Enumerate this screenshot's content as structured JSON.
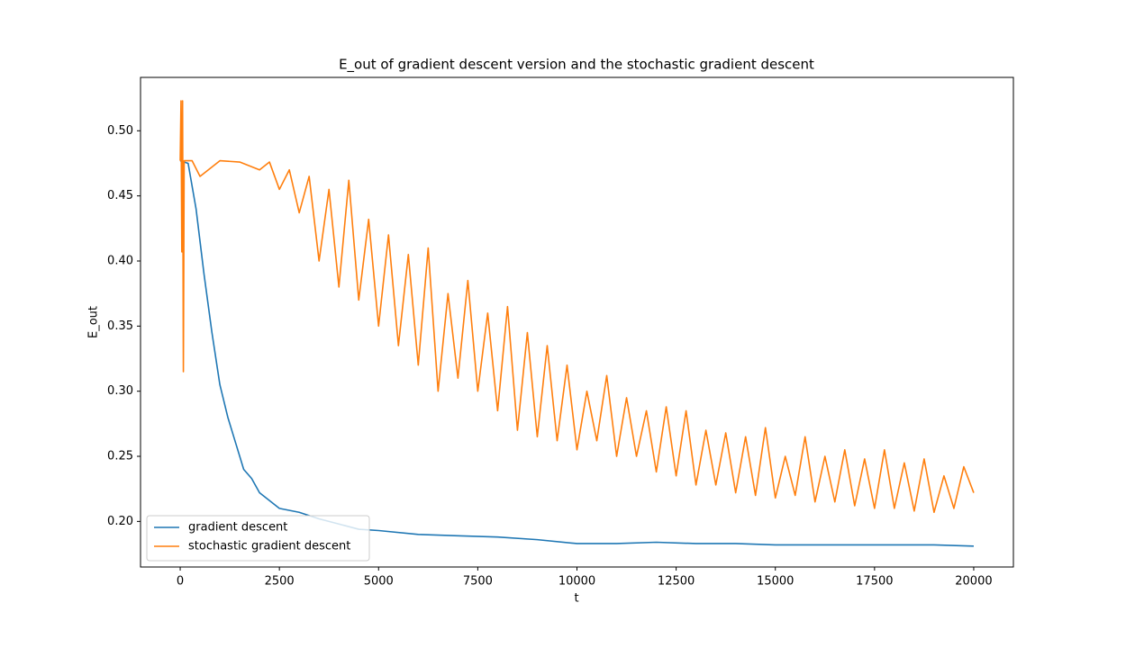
{
  "chart_data": {
    "type": "line",
    "title": "E_out of gradient descent version and the stochastic gradient descent",
    "x_label": "t",
    "y_label": "E_out",
    "xlim": [
      -1000,
      21000
    ],
    "ylim": [
      0.165,
      0.541
    ],
    "xticks": [
      0,
      2500,
      5000,
      7500,
      10000,
      12500,
      15000,
      17500,
      20000
    ],
    "yticks": [
      {
        "value": 0.2,
        "label": "0.20"
      },
      {
        "value": 0.25,
        "label": "0.25"
      },
      {
        "value": 0.3,
        "label": "0.30"
      },
      {
        "value": 0.35,
        "label": "0.35"
      },
      {
        "value": 0.4,
        "label": "0.40"
      },
      {
        "value": 0.45,
        "label": "0.45"
      },
      {
        "value": 0.5,
        "label": "0.50"
      }
    ],
    "legend": "lower left",
    "grid": false,
    "series": [
      {
        "name": "gradient descent",
        "color": "#1f77b4",
        "x": [
          0,
          200,
          400,
          600,
          800,
          1000,
          1200,
          1400,
          1600,
          1800,
          2000,
          2500,
          3000,
          3500,
          4000,
          4500,
          5000,
          6000,
          7000,
          8000,
          9000,
          10000,
          11000,
          12000,
          13000,
          14000,
          15000,
          16000,
          17000,
          18000,
          19000,
          20000
        ],
        "values": [
          0.477,
          0.475,
          0.44,
          0.39,
          0.345,
          0.305,
          0.28,
          0.26,
          0.24,
          0.233,
          0.222,
          0.21,
          0.207,
          0.202,
          0.198,
          0.194,
          0.193,
          0.19,
          0.189,
          0.188,
          0.186,
          0.183,
          0.183,
          0.184,
          0.183,
          0.183,
          0.182,
          0.182,
          0.182,
          0.182,
          0.182,
          0.181
        ]
      },
      {
        "name": "stochastic gradient descent",
        "color": "#ff7f0e",
        "x": [
          0,
          20,
          40,
          60,
          80,
          100,
          300,
          500,
          1000,
          1500,
          2000,
          2250,
          2500,
          2750,
          3000,
          3250,
          3500,
          3750,
          4000,
          4250,
          4500,
          4750,
          5000,
          5250,
          5500,
          5750,
          6000,
          6250,
          6500,
          6750,
          7000,
          7250,
          7500,
          7750,
          8000,
          8250,
          8500,
          8750,
          9000,
          9250,
          9500,
          9750,
          10000,
          10250,
          10500,
          10750,
          11000,
          11250,
          11500,
          11750,
          12000,
          12250,
          12500,
          12750,
          13000,
          13250,
          13500,
          13750,
          14000,
          14250,
          14500,
          14750,
          15000,
          15250,
          15500,
          15750,
          16000,
          16250,
          16500,
          16750,
          17000,
          17250,
          17500,
          17750,
          18000,
          18250,
          18500,
          18750,
          19000,
          19250,
          19500,
          19750,
          20000
        ],
        "values": [
          0.477,
          0.523,
          0.407,
          0.523,
          0.315,
          0.477,
          0.477,
          0.465,
          0.477,
          0.476,
          0.47,
          0.476,
          0.455,
          0.47,
          0.437,
          0.465,
          0.4,
          0.455,
          0.38,
          0.462,
          0.37,
          0.432,
          0.35,
          0.42,
          0.335,
          0.405,
          0.32,
          0.41,
          0.3,
          0.375,
          0.31,
          0.385,
          0.3,
          0.36,
          0.285,
          0.365,
          0.27,
          0.345,
          0.265,
          0.335,
          0.262,
          0.32,
          0.255,
          0.3,
          0.262,
          0.312,
          0.25,
          0.295,
          0.25,
          0.285,
          0.238,
          0.288,
          0.235,
          0.285,
          0.228,
          0.27,
          0.228,
          0.268,
          0.222,
          0.265,
          0.22,
          0.272,
          0.218,
          0.25,
          0.22,
          0.265,
          0.215,
          0.25,
          0.215,
          0.255,
          0.212,
          0.248,
          0.21,
          0.255,
          0.21,
          0.245,
          0.208,
          0.248,
          0.207,
          0.235,
          0.21,
          0.242,
          0.222
        ]
      }
    ]
  }
}
